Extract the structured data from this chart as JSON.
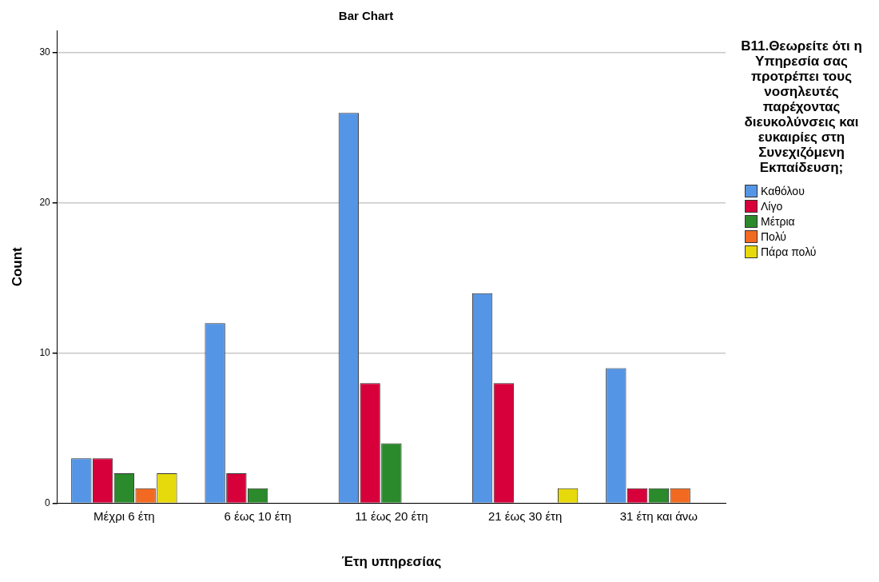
{
  "chart_data": {
    "type": "bar",
    "title": "Bar Chart",
    "xlabel": "Έτη υπηρεσίας",
    "ylabel": "Count",
    "legend_title": "B11.Θεωρείτε ότι η Υπηρεσία σας προτρέπει τους νοσηλευτές παρέχοντας διευκολύνσεις και ευκαιρίες στη Συνεχιζόμενη Εκπαίδευση;",
    "categories": [
      "Μέχρι 6 έτη",
      "6 έως 10 έτη",
      "11 έως 20 έτη",
      "21 έως 30 έτη",
      "31 έτη και άνω"
    ],
    "series": [
      {
        "name": "Καθόλου",
        "color": "#5595e5",
        "values": [
          3,
          12,
          26,
          14,
          9
        ]
      },
      {
        "name": "Λίγο",
        "color": "#d7003a",
        "values": [
          3,
          2,
          8,
          8,
          1
        ]
      },
      {
        "name": "Μέτρια",
        "color": "#2b8a2b",
        "values": [
          2,
          1,
          4,
          null,
          1
        ]
      },
      {
        "name": "Πολύ",
        "color": "#f26a21",
        "values": [
          1,
          null,
          null,
          null,
          1
        ]
      },
      {
        "name": "Πάρα πολύ",
        "color": "#e6da0d",
        "values": [
          2,
          null,
          null,
          1,
          null
        ]
      }
    ],
    "ylim": [
      0,
      31.5
    ],
    "yticks": [
      0,
      10,
      20,
      30
    ],
    "grid": "y",
    "legend": "right"
  }
}
